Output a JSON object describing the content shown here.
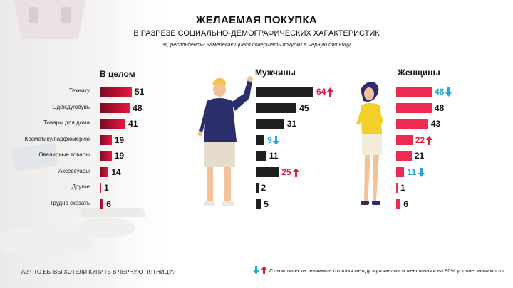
{
  "title": "ЖЕЛАЕМАЯ ПОКУПКА",
  "subtitle": "В РАЗРЕЗЕ СОЦИАЛЬНО-ДЕМОГРАФИЧЕСКИХ ХАРАКТЕРИСТИК",
  "note": "%,  респонденты намеревающиеся совершать покупки в Черную пятницу",
  "footer_question": "A2 ЧТО БЫ ВЫ ХОТЕЛИ КУПИТЬ  В ЧЕРНУЮ ПЯТНИЦУ?",
  "footer_legend": "Статистически  значимые отличия  между мужчинами и женщинами на 90% уровне значимости",
  "colors": {
    "overall_gradient_dark": "#7a0a25",
    "overall_gradient_light": "#e8173f",
    "men": "#1f1f1f",
    "women": "#ee2a52",
    "up": "#e8173f",
    "down": "#25a6da"
  },
  "chart_data": {
    "type": "bar",
    "orientation": "horizontal",
    "categories": [
      "Технику",
      "Одежду/обувь",
      "Товары для дома",
      "Косметику/парфюмерию",
      "Ювелирные товары",
      "Аксессуары",
      "Другое",
      "Трудно  сказать"
    ],
    "series": [
      {
        "name": "В целом",
        "values": [
          51,
          48,
          41,
          19,
          19,
          14,
          1,
          6
        ]
      },
      {
        "name": "Мужчины",
        "values": [
          64,
          45,
          31,
          9,
          11,
          25,
          2,
          5
        ],
        "significance": [
          "up",
          "",
          "",
          "down",
          "",
          "up",
          "",
          ""
        ]
      },
      {
        "name": "Женщины",
        "values": [
          48,
          48,
          43,
          22,
          21,
          11,
          1,
          6
        ],
        "significance": [
          "down",
          "",
          "",
          "up",
          "",
          "down",
          "",
          ""
        ]
      }
    ]
  }
}
